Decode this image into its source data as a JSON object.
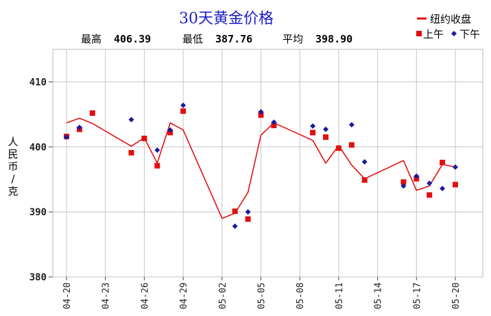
{
  "chart_data": {
    "type": "line",
    "title": "30天黄金价格",
    "stats": {
      "high_label": "最高",
      "high_value": "406.39",
      "low_label": "最低",
      "low_value": "387.76",
      "avg_label": "平均",
      "avg_value": "398.90"
    },
    "ylabel": "人民币/克",
    "ylim": [
      380,
      415
    ],
    "yticks": [
      380,
      390,
      400,
      410
    ],
    "x_days": [
      "04-20",
      "04-21",
      "04-22",
      "04-23",
      "04-24",
      "04-25",
      "04-26",
      "04-27",
      "04-28",
      "04-29",
      "04-30",
      "05-01",
      "05-02",
      "05-03",
      "05-04",
      "05-05",
      "05-06",
      "05-07",
      "05-08",
      "05-09",
      "05-10",
      "05-11",
      "05-12",
      "05-13",
      "05-14",
      "05-15",
      "05-16",
      "05-17",
      "05-18",
      "05-19",
      "05-20"
    ],
    "x_tick_labels": [
      "04-20",
      "04-23",
      "04-26",
      "04-29",
      "05-02",
      "05-05",
      "05-08",
      "05-11",
      "05-14",
      "05-17",
      "05-20"
    ],
    "grid": true,
    "legend": {
      "placement": "top-right",
      "items": [
        {
          "label": "纽约收盘",
          "marker": "line",
          "color": "#e01010"
        },
        {
          "label": "上午",
          "marker": "square",
          "color": "#e01010"
        },
        {
          "label": "下午",
          "marker": "diamond",
          "color": "#1a1aa0"
        }
      ]
    },
    "series": [
      {
        "name": "纽约收盘",
        "kind": "line",
        "color": "#e01010",
        "points": [
          {
            "x": "04-20",
            "y": 403.7
          },
          {
            "x": "04-21",
            "y": 404.4
          },
          {
            "x": "04-22",
            "y": 403.6
          },
          {
            "x": "04-25",
            "y": 400.1
          },
          {
            "x": "04-26",
            "y": 401.4
          },
          {
            "x": "04-27",
            "y": 397.5
          },
          {
            "x": "04-28",
            "y": 403.7
          },
          {
            "x": "04-29",
            "y": 402.6
          },
          {
            "x": "05-02",
            "y": 389.0
          },
          {
            "x": "05-03",
            "y": 389.8
          },
          {
            "x": "05-04",
            "y": 393.0
          },
          {
            "x": "05-05",
            "y": 401.8
          },
          {
            "x": "05-06",
            "y": 403.7
          },
          {
            "x": "05-09",
            "y": 401.0
          },
          {
            "x": "05-10",
            "y": 397.5
          },
          {
            "x": "05-11",
            "y": 400.2
          },
          {
            "x": "05-12",
            "y": 397.2
          },
          {
            "x": "05-13",
            "y": 395.1
          },
          {
            "x": "05-16",
            "y": 397.9
          },
          {
            "x": "05-17",
            "y": 393.3
          },
          {
            "x": "05-18",
            "y": 394.0
          },
          {
            "x": "05-19",
            "y": 397.3
          },
          {
            "x": "05-20",
            "y": 396.9
          }
        ]
      },
      {
        "name": "上午",
        "kind": "square",
        "color": "#e01010",
        "points": [
          {
            "x": "04-20",
            "y": 401.6
          },
          {
            "x": "04-21",
            "y": 402.7
          },
          {
            "x": "04-22",
            "y": 405.2
          },
          {
            "x": "04-25",
            "y": 399.1
          },
          {
            "x": "04-26",
            "y": 401.3
          },
          {
            "x": "04-27",
            "y": 397.1
          },
          {
            "x": "04-28",
            "y": 402.2
          },
          {
            "x": "04-29",
            "y": 405.5
          },
          {
            "x": "05-03",
            "y": 390.1
          },
          {
            "x": "05-04",
            "y": 388.9
          },
          {
            "x": "05-05",
            "y": 404.9
          },
          {
            "x": "05-06",
            "y": 403.3
          },
          {
            "x": "05-09",
            "y": 402.2
          },
          {
            "x": "05-10",
            "y": 401.5
          },
          {
            "x": "05-11",
            "y": 399.8
          },
          {
            "x": "05-12",
            "y": 400.3
          },
          {
            "x": "05-13",
            "y": 394.9
          },
          {
            "x": "05-16",
            "y": 394.6
          },
          {
            "x": "05-17",
            "y": 395.1
          },
          {
            "x": "05-18",
            "y": 392.6
          },
          {
            "x": "05-19",
            "y": 397.6
          },
          {
            "x": "05-20",
            "y": 394.2
          }
        ]
      },
      {
        "name": "下午",
        "kind": "diamond",
        "color": "#1a1aa0",
        "points": [
          {
            "x": "04-20",
            "y": 401.5
          },
          {
            "x": "04-21",
            "y": 403.0
          },
          {
            "x": "04-25",
            "y": 404.2
          },
          {
            "x": "04-27",
            "y": 399.5
          },
          {
            "x": "04-28",
            "y": 402.6
          },
          {
            "x": "04-29",
            "y": 406.4
          },
          {
            "x": "05-03",
            "y": 387.8
          },
          {
            "x": "05-04",
            "y": 390.0
          },
          {
            "x": "05-05",
            "y": 405.4
          },
          {
            "x": "05-06",
            "y": 403.8
          },
          {
            "x": "05-09",
            "y": 403.2
          },
          {
            "x": "05-10",
            "y": 402.7
          },
          {
            "x": "05-12",
            "y": 403.4
          },
          {
            "x": "05-13",
            "y": 397.7
          },
          {
            "x": "05-16",
            "y": 394.0
          },
          {
            "x": "05-17",
            "y": 395.5
          },
          {
            "x": "05-18",
            "y": 394.4
          },
          {
            "x": "05-19",
            "y": 393.6
          },
          {
            "x": "05-20",
            "y": 396.9
          }
        ]
      }
    ]
  }
}
